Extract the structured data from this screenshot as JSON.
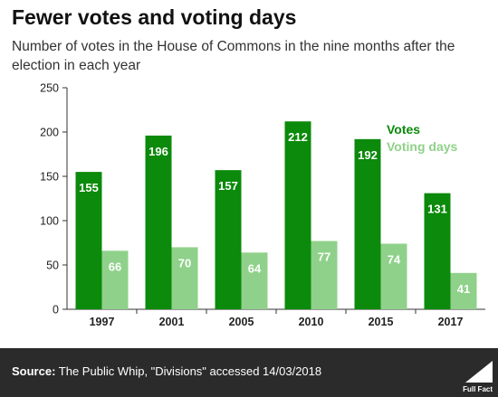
{
  "header": {
    "title": "Fewer votes and voting days",
    "subtitle": "Number of votes in the House of Commons in the nine months after the election in each year"
  },
  "chart_data": {
    "type": "bar",
    "title": "Fewer votes and voting days",
    "subtitle": "Number of votes in the House of Commons in the nine months after the election in each year",
    "xlabel": "",
    "ylabel": "",
    "categories": [
      "1997",
      "2001",
      "2005",
      "2010",
      "2015",
      "2017"
    ],
    "series": [
      {
        "name": "Votes",
        "values": [
          155,
          196,
          157,
          212,
          192,
          131
        ],
        "color": "#0b8a0b"
      },
      {
        "name": "Voting days",
        "values": [
          66,
          70,
          64,
          77,
          74,
          41
        ],
        "color": "#8fd18a"
      }
    ],
    "ylim": [
      0,
      250
    ],
    "yticks": [
      0,
      50,
      100,
      150,
      200,
      250
    ],
    "grid": false,
    "legend": "top-right, inside plot"
  },
  "footer": {
    "source_label": "Source:",
    "source_text": "The Public Whip, \"Divisions\" accessed 14/03/2018",
    "brand": "Full Fact"
  },
  "colors": {
    "footer_bg": "#2b2b2b",
    "axis": "#333333",
    "label_on_bar": "#ffffff"
  }
}
